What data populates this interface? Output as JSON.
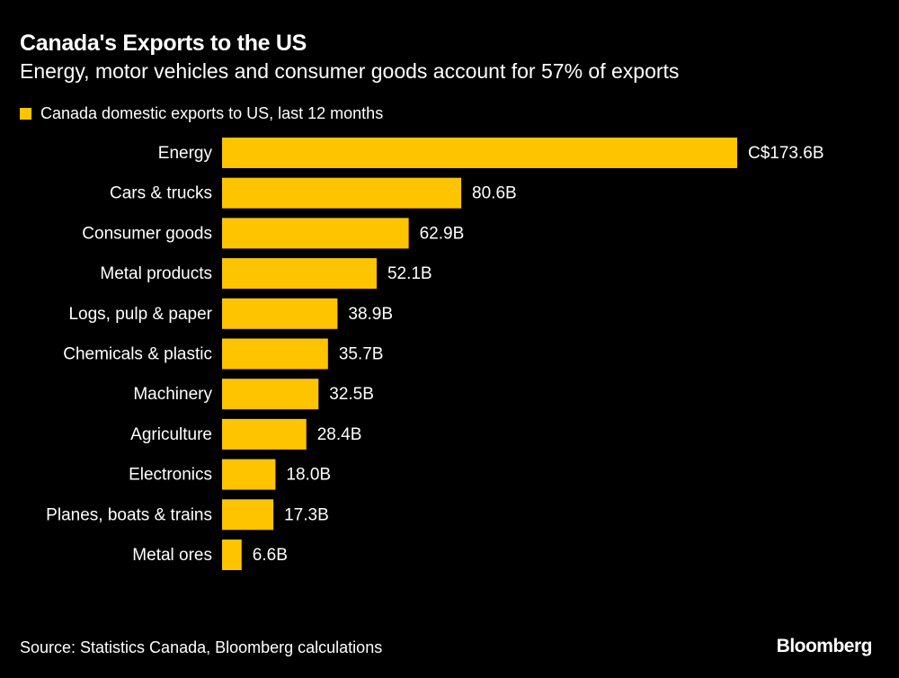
{
  "chart_data": {
    "type": "bar",
    "orientation": "horizontal",
    "title": "Canada's Exports to the US",
    "subtitle": "Energy, motor vehicles and consumer goods account for 57% of exports",
    "categories": [
      "Energy",
      "Cars & trucks",
      "Consumer goods",
      "Metal products",
      "Logs, pulp & paper",
      "Chemicals & plastic",
      "Machinery",
      "Agriculture",
      "Electronics",
      "Planes, boats & trains",
      "Metal ores"
    ],
    "series": [
      {
        "name": "Canada domestic exports to US, last 12 months",
        "values": [
          173.6,
          80.6,
          62.9,
          52.1,
          38.9,
          35.7,
          32.5,
          28.4,
          18.0,
          17.3,
          6.6
        ],
        "color": "#FFC400"
      }
    ],
    "data_labels": [
      "C$173.6B",
      "80.6B",
      "62.9B",
      "52.1B",
      "38.9B",
      "35.7B",
      "32.5B",
      "28.4B",
      "18.0B",
      "17.3B",
      "6.6B"
    ],
    "xlim": [
      0,
      173.6
    ],
    "grid": false,
    "legend_position": "top-left"
  },
  "footer": {
    "source": "Source: Statistics Canada, Bloomberg calculations",
    "logo": "Bloomberg"
  }
}
